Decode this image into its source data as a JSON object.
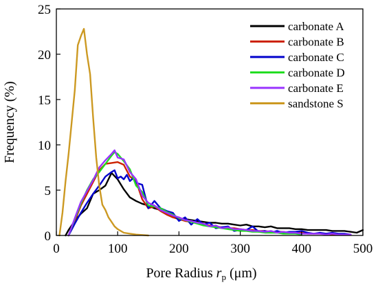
{
  "chart_data": {
    "type": "line",
    "title": "",
    "xlabel": "Pore Radius ",
    "xlabel_symbol": "r",
    "xlabel_subscript": "p",
    "xlabel_unit": " (μm)",
    "ylabel": "Frequency (%)",
    "xlim": [
      0,
      500
    ],
    "ylim": [
      0,
      25
    ],
    "xticks": [
      0,
      100,
      200,
      300,
      400,
      500
    ],
    "yticks": [
      0,
      5,
      10,
      15,
      20,
      25
    ],
    "grid": false,
    "legend_position": "top-right",
    "series": [
      {
        "name": "carbonate A",
        "color": "#000000",
        "x": [
          15,
          20,
          30,
          40,
          50,
          60,
          70,
          80,
          90,
          100,
          110,
          120,
          130,
          140,
          150,
          160,
          170,
          180,
          190,
          200,
          210,
          220,
          230,
          240,
          250,
          260,
          270,
          280,
          290,
          300,
          310,
          320,
          330,
          340,
          350,
          360,
          370,
          380,
          390,
          400,
          410,
          420,
          430,
          440,
          450,
          460,
          470,
          480,
          490,
          500
        ],
        "values": [
          0,
          0.6,
          1.6,
          2.4,
          3.0,
          4.6,
          5.0,
          5.5,
          6.9,
          6.2,
          5.1,
          4.2,
          3.8,
          3.5,
          3.3,
          3.0,
          2.8,
          2.5,
          2.2,
          1.9,
          1.8,
          1.7,
          1.6,
          1.5,
          1.4,
          1.4,
          1.3,
          1.3,
          1.2,
          1.1,
          1.2,
          1.0,
          1.0,
          0.9,
          1.0,
          0.8,
          0.8,
          0.8,
          0.7,
          0.7,
          0.6,
          0.6,
          0.6,
          0.6,
          0.5,
          0.5,
          0.5,
          0.4,
          0.3,
          0.6
        ]
      },
      {
        "name": "carbonate B",
        "color": "#cc2200",
        "x": [
          20,
          30,
          40,
          50,
          60,
          70,
          80,
          90,
          100,
          110,
          120,
          130,
          140,
          150,
          160,
          170,
          180,
          190,
          200,
          210,
          220,
          230,
          240,
          250,
          260,
          270,
          280,
          290,
          300,
          310,
          320,
          330,
          340,
          350,
          360,
          370,
          380,
          390,
          400,
          410,
          420,
          430,
          440,
          450,
          460,
          470,
          480
        ],
        "values": [
          0,
          1.6,
          3.3,
          4.6,
          5.9,
          7.2,
          7.9,
          8.0,
          8.1,
          7.8,
          6.5,
          6.0,
          4.0,
          3.0,
          3.2,
          2.7,
          2.3,
          2.0,
          1.8,
          1.6,
          1.5,
          1.4,
          1.2,
          1.1,
          1.0,
          0.9,
          0.8,
          0.8,
          0.7,
          0.6,
          0.6,
          0.5,
          0.5,
          0.4,
          0.4,
          0.4,
          0.3,
          0.3,
          0.3,
          0.2,
          0.2,
          0.2,
          0.2,
          0.1,
          0.1,
          0.1,
          0.1
        ]
      },
      {
        "name": "carbonate C",
        "color": "#0000cc",
        "x": [
          20,
          30,
          40,
          50,
          60,
          70,
          80,
          90,
          95,
          100,
          105,
          110,
          115,
          120,
          125,
          130,
          140,
          150,
          160,
          170,
          180,
          190,
          200,
          210,
          220,
          230,
          240,
          250,
          260,
          270,
          280,
          290,
          300,
          310,
          320,
          330,
          340,
          350,
          360,
          370,
          380,
          390,
          400,
          410,
          420,
          430,
          440,
          450,
          460,
          470,
          480
        ],
        "values": [
          0,
          1.3,
          2.5,
          3.6,
          4.6,
          5.5,
          6.5,
          7.0,
          7.2,
          6.3,
          6.5,
          6.2,
          6.7,
          6.0,
          6.3,
          5.8,
          5.6,
          3.0,
          3.8,
          3.0,
          2.7,
          2.5,
          1.6,
          2.0,
          1.2,
          1.8,
          1.2,
          1.4,
          0.8,
          0.9,
          1.0,
          0.5,
          0.6,
          0.6,
          1.0,
          0.4,
          0.5,
          0.3,
          0.5,
          0.3,
          0.4,
          0.4,
          0.5,
          0.3,
          0.2,
          0.3,
          0.2,
          0.3,
          0.2,
          0.2,
          0.1
        ]
      },
      {
        "name": "carbonate D",
        "color": "#22dd22",
        "x": [
          20,
          30,
          40,
          50,
          60,
          70,
          80,
          90,
          95,
          100,
          110,
          120,
          130,
          140,
          150,
          160,
          170,
          180,
          190,
          200,
          210,
          220,
          230,
          240,
          250,
          260,
          270,
          280,
          290,
          300,
          310,
          320,
          330,
          340,
          350,
          360,
          370,
          380,
          390,
          400
        ],
        "values": [
          0,
          1.8,
          3.5,
          5.0,
          6.2,
          7.0,
          7.9,
          8.8,
          9.2,
          9.0,
          8.2,
          7.3,
          5.5,
          4.8,
          3.3,
          3.2,
          3.0,
          2.6,
          2.3,
          1.9,
          1.7,
          1.5,
          1.3,
          1.1,
          1.0,
          0.9,
          0.8,
          0.7,
          0.6,
          0.5,
          0.5,
          0.4,
          0.4,
          0.3,
          0.3,
          0.3,
          0.2,
          0.2,
          0.2,
          0.1
        ]
      },
      {
        "name": "carbonate E",
        "color": "#9933ff",
        "x": [
          20,
          30,
          40,
          50,
          60,
          70,
          80,
          90,
          95,
          100,
          110,
          120,
          130,
          140,
          150,
          160,
          170,
          180,
          190,
          200,
          210,
          220,
          230,
          240,
          250,
          260,
          270,
          280,
          290,
          300,
          310,
          320,
          330,
          340,
          350,
          360,
          370,
          380,
          390,
          400,
          410,
          420,
          430,
          440,
          450,
          460,
          470,
          480
        ],
        "values": [
          0,
          1.9,
          3.7,
          4.9,
          6.1,
          7.5,
          8.3,
          9.0,
          9.4,
          8.6,
          8.4,
          7.0,
          6.2,
          4.4,
          3.6,
          3.3,
          2.8,
          2.5,
          2.2,
          2.0,
          1.7,
          1.6,
          1.4,
          1.3,
          1.0,
          1.1,
          0.8,
          0.9,
          0.7,
          0.7,
          0.6,
          0.5,
          0.5,
          0.4,
          0.5,
          0.3,
          0.4,
          0.3,
          0.3,
          0.2,
          0.2,
          0.2,
          0.2,
          0.1,
          0.2,
          0.1,
          0.1,
          0.1
        ]
      },
      {
        "name": "sandstone S",
        "color": "#cc9922",
        "x": [
          5,
          10,
          15,
          20,
          25,
          30,
          35,
          40,
          45,
          50,
          55,
          60,
          65,
          70,
          75,
          80,
          85,
          90,
          95,
          100,
          110,
          120,
          130,
          140,
          150
        ],
        "values": [
          0,
          2.5,
          6.0,
          9.0,
          12.5,
          16.0,
          21.0,
          22.0,
          22.8,
          20.0,
          17.8,
          13.0,
          8.6,
          5.5,
          3.4,
          2.8,
          2.0,
          1.5,
          1.0,
          0.7,
          0.3,
          0.2,
          0.1,
          0.05,
          0
        ]
      }
    ]
  }
}
